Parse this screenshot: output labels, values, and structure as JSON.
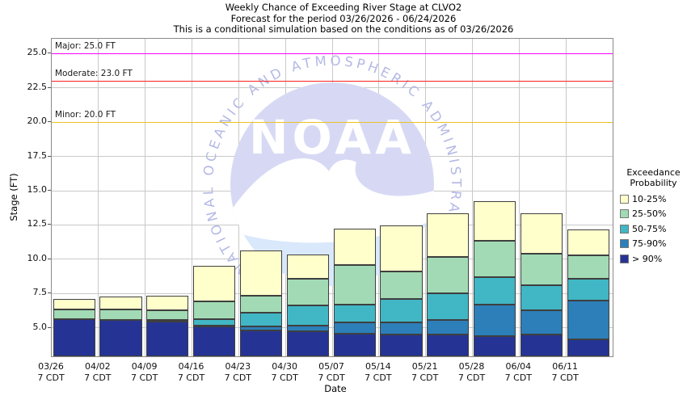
{
  "title": {
    "line1": "Weekly Chance of Exceeding River Stage at CLVO2",
    "line2": "Forecast for the period 03/26/2026 - 06/24/2026",
    "line3": "This is a conditional simulation based on the conditions as of 03/26/2026"
  },
  "axes": {
    "ylabel": "Stage (FT)",
    "xlabel": "Date",
    "yticks": [
      5.0,
      7.5,
      10.0,
      12.5,
      15.0,
      17.5,
      20.0,
      22.5,
      25.0
    ],
    "ytick_labels": [
      "5.0",
      "7.5",
      "10.0",
      "12.5",
      "15.0",
      "17.5",
      "20.0",
      "22.5",
      "25.0"
    ],
    "grid": true
  },
  "reference_lines": [
    {
      "name": "Major",
      "label": "Major: 25.0 FT",
      "value": 25.0,
      "color": "#ff00ff"
    },
    {
      "name": "Moderate",
      "label": "Moderate: 23.0 FT",
      "value": 23.0,
      "color": "#ff2222"
    },
    {
      "name": "Minor",
      "label": "Minor: 20.0 FT",
      "value": 20.0,
      "color": "#e8c227"
    }
  ],
  "legend": {
    "title_line1": "Exceedance",
    "title_line2": "Probability",
    "entries": [
      {
        "label": "10-25%",
        "color": "#ffffcc"
      },
      {
        "label": "25-50%",
        "color": "#a1dab4"
      },
      {
        "label": "50-75%",
        "color": "#41b6c4"
      },
      {
        "label": "75-90%",
        "color": "#2c7fb8"
      },
      {
        "label": "> 90%",
        "color": "#253494"
      }
    ]
  },
  "watermark": {
    "name": "noaa-logo",
    "text": "NOAA",
    "ring_text": "NATIONAL OCEANIC AND ATMOSPHERIC ADMINISTRATION",
    "circle_color": "#d7d9f4",
    "sea_color": "#d9e8fb",
    "ring_text_color": "#b4b9e4"
  },
  "chart_data": {
    "type": "bar",
    "stacked": true,
    "title": "Weekly Chance of Exceeding River Stage at CLVO2",
    "xlabel": "Date",
    "ylabel": "Stage (FT)",
    "ylim": [
      2.94,
      26.06
    ],
    "base": 2.94,
    "categories": [
      "03/26",
      "04/02",
      "04/09",
      "04/16",
      "04/23",
      "04/30",
      "05/07",
      "05/14",
      "05/21",
      "05/28",
      "06/04",
      "06/11"
    ],
    "tick_sublabel": "7 CDT",
    "series_note": "tops = stage (FT) at top of each stacked band, cumulative from base",
    "series": [
      {
        "name": "> 90%",
        "color": "#253494",
        "tops": [
          5.65,
          5.6,
          5.45,
          5.1,
          4.8,
          4.75,
          4.6,
          4.5,
          4.5,
          4.4,
          4.5,
          4.2
        ]
      },
      {
        "name": "75-90%",
        "color": "#2c7fb8",
        "tops": [
          5.65,
          5.6,
          5.45,
          5.2,
          5.1,
          5.2,
          5.4,
          5.4,
          5.6,
          6.7,
          6.3,
          7.0
        ]
      },
      {
        "name": "50-75%",
        "color": "#41b6c4",
        "tops": [
          5.65,
          5.6,
          5.6,
          5.65,
          6.1,
          6.65,
          6.7,
          7.1,
          7.5,
          8.7,
          8.1,
          8.6
        ]
      },
      {
        "name": "25-50%",
        "color": "#a1dab4",
        "tops": [
          6.35,
          6.35,
          6.3,
          6.95,
          7.35,
          8.6,
          9.6,
          9.1,
          10.2,
          11.35,
          10.4,
          10.3
        ]
      },
      {
        "name": "10-25%",
        "color": "#ffffcc",
        "tops": [
          7.1,
          7.3,
          7.35,
          9.5,
          10.65,
          10.35,
          12.25,
          12.45,
          13.35,
          14.25,
          13.35,
          12.2
        ]
      }
    ]
  }
}
